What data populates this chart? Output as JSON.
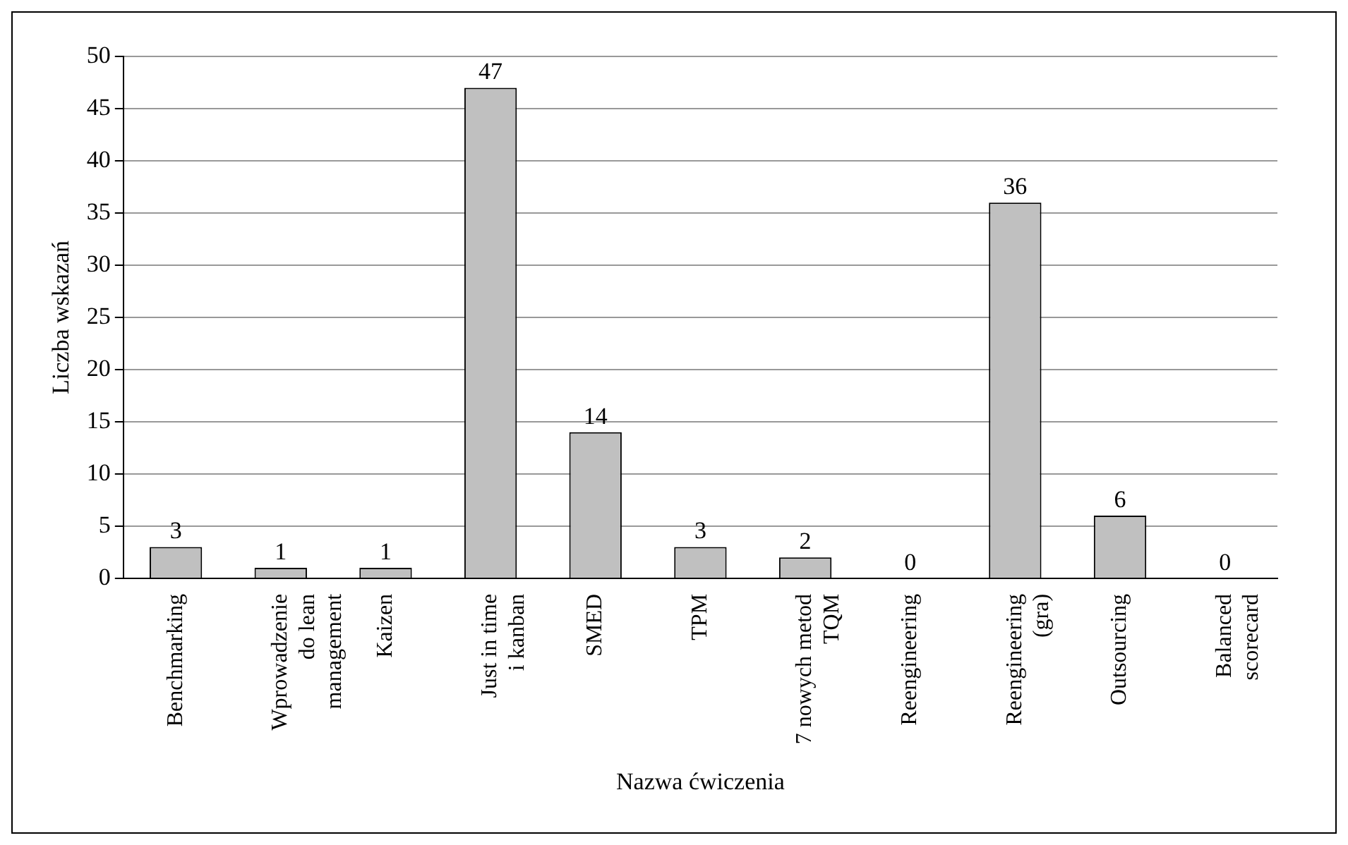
{
  "chart_data": {
    "type": "bar",
    "xlabel": "Nazwa ćwiczenia",
    "ylabel": "Liczba wskazań",
    "categories": [
      "Benchmarking",
      "Wprowadzenie\ndo lean\nmanagement",
      "Kaizen",
      "Just in time\ni kanban",
      "SMED",
      "TPM",
      "7 nowych metod\nTQM",
      "Reengineering",
      "Reengineering\n(gra)",
      "Outsourcing",
      "Balanced\nscorecard"
    ],
    "values": [
      3,
      1,
      1,
      47,
      14,
      3,
      2,
      0,
      36,
      6,
      0
    ],
    "color": "#c0c0c0",
    "ylim": [
      0,
      50
    ],
    "yticks": [
      0,
      5,
      10,
      15,
      20,
      25,
      30,
      35,
      40,
      45,
      50
    ],
    "grid": "y",
    "data_labels": true,
    "legend": false
  }
}
